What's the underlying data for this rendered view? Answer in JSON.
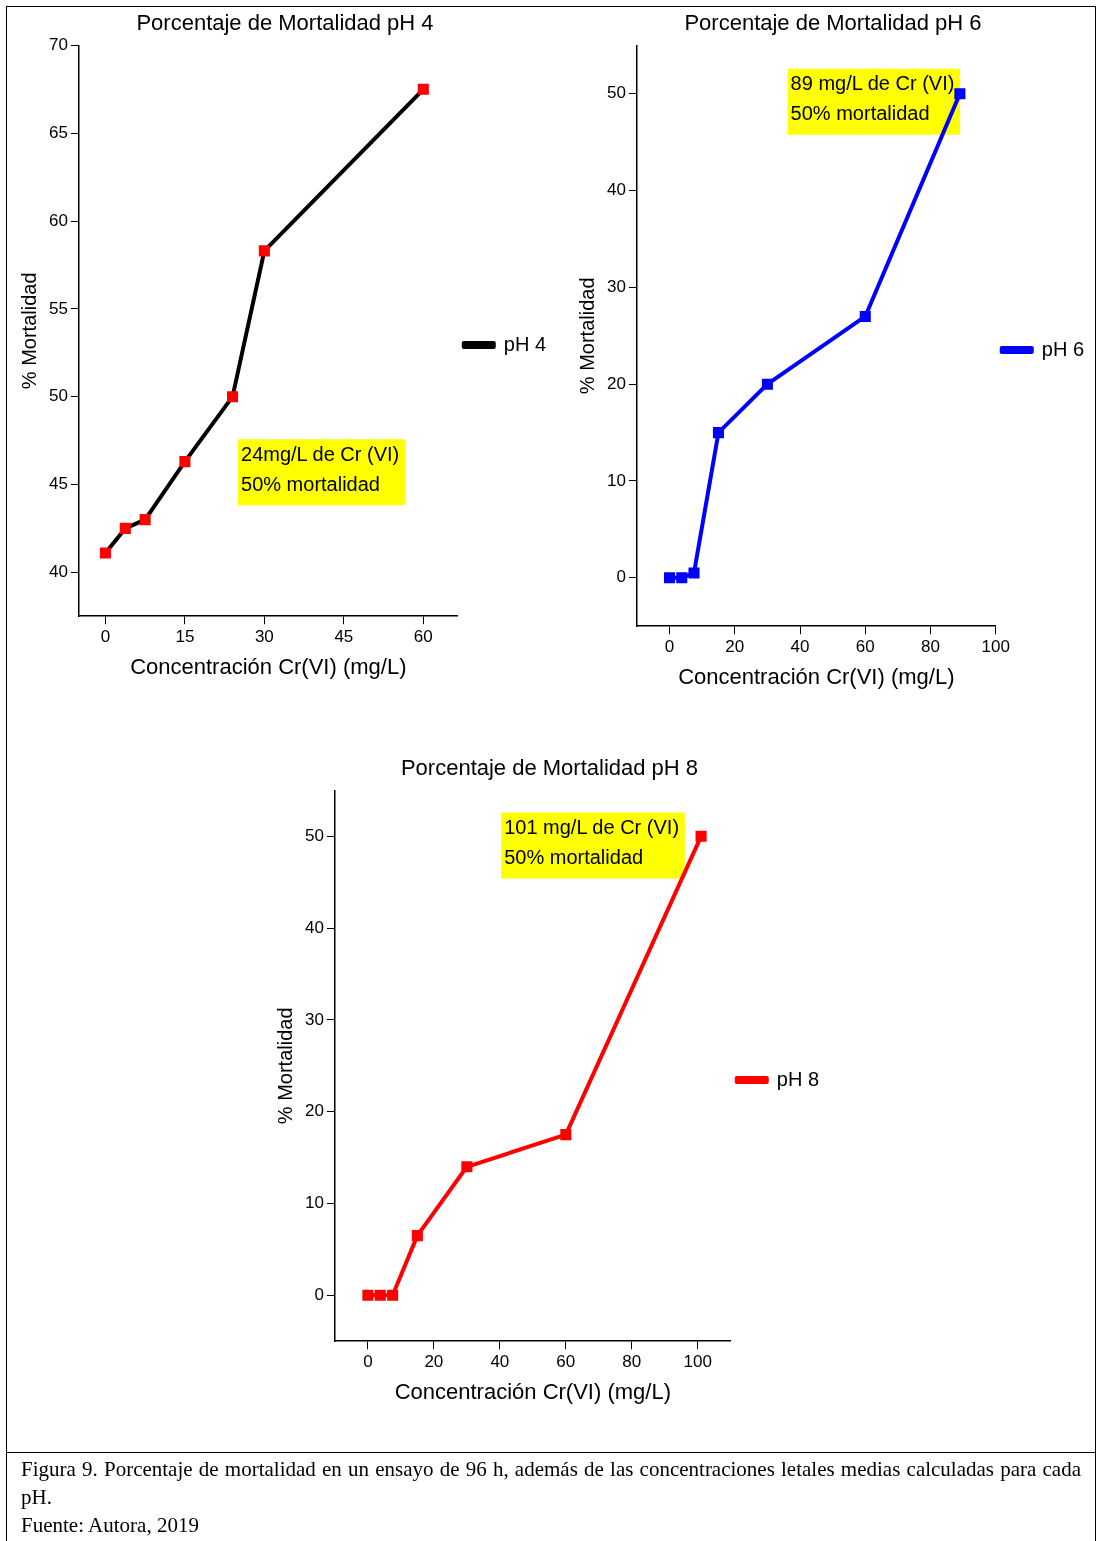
{
  "chart_data": [
    {
      "type": "line",
      "title": "Porcentaje de Mortalidad pH 4",
      "xlabel": "Concentración Cr(VI) (mg/L)",
      "ylabel": "% Mortalidad",
      "annotations": [
        "24mg/L de Cr (VI)",
        "50% mortalidad"
      ],
      "legend": "right",
      "marker": "square",
      "line_style": "solid",
      "grid": false,
      "xlim": [
        -5,
        66.5
      ],
      "xticks": [
        0,
        15,
        30,
        45,
        60
      ],
      "ylim": [
        37.5,
        70
      ],
      "yticks": [
        40,
        45,
        50,
        55,
        60,
        65,
        70
      ],
      "series": [
        {
          "name": "pH 4",
          "color": "#000000",
          "x": [
            0,
            3.75,
            7.5,
            15,
            24,
            30,
            60
          ],
          "values": [
            41.1,
            42.5,
            43,
            46.3,
            50,
            58.3,
            67.5
          ]
        }
      ]
    },
    {
      "type": "line",
      "title": "Porcentaje de Mortalidad pH 6",
      "xlabel": "Concentración Cr(VI) (mg/L)",
      "ylabel": "% Mortalidad",
      "annotations": [
        "89 mg/L de Cr (VI)",
        "50% mortalidad"
      ],
      "legend": "right",
      "marker": "square",
      "line_style": "solid",
      "grid": false,
      "xlim": [
        -10,
        100
      ],
      "xticks": [
        0,
        20,
        40,
        60,
        80,
        100
      ],
      "ylim": [
        -5,
        55
      ],
      "yticks": [
        0,
        10,
        20,
        30,
        40,
        50
      ],
      "series": [
        {
          "name": "pH 6",
          "color": "#0000ff",
          "x": [
            0,
            3.75,
            7.5,
            15,
            30,
            60,
            89
          ],
          "values": [
            0,
            0,
            0.5,
            15,
            20,
            27,
            50
          ]
        }
      ]
    },
    {
      "type": "line",
      "title": "Porcentaje de Mortalidad pH 8",
      "xlabel": "Concentración Cr(VI) (mg/L)",
      "ylabel": "% Mortalidad",
      "annotations": [
        "101 mg/L de Cr (VI)",
        "50% mortalidad",
        "Figura 9. Porcentaje de mortalidad en un ensayo de 96 h, además de las concentraciones letales medias calculadas para cada pH.",
        "Fuente: Autora, 2019"
      ],
      "legend": "right",
      "marker": "square",
      "line_style": "solid",
      "grid": false,
      "xlim": [
        -10,
        110
      ],
      "xticks": [
        0,
        20,
        40,
        60,
        80,
        100
      ],
      "ylim": [
        -5,
        55
      ],
      "yticks": [
        0,
        10,
        20,
        30,
        40,
        50
      ],
      "series": [
        {
          "name": "pH 8",
          "color": "#ff0000",
          "x": [
            0,
            3.75,
            7.5,
            15,
            30,
            60,
            101
          ],
          "values": [
            0,
            0,
            0,
            6.5,
            14,
            17.5,
            50
          ]
        }
      ]
    }
  ]
}
